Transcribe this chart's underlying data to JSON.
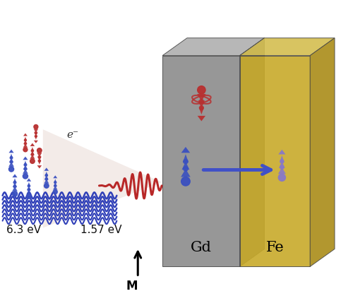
{
  "bg_color": "#ffffff",
  "gd_face_color": "#8c8c8c",
  "gd_top_color": "#b0b0b0",
  "gd_side_color": "#707070",
  "fe_face_color": "#c8aa2a",
  "fe_top_color": "#d4be50",
  "fe_side_color": "#aa8c18",
  "gd_label": "Gd",
  "fe_label": "Fe",
  "M_label": "M",
  "ev_label_1": "6.3 eV",
  "ev_label_2": "1.57 eV",
  "e_label": "e⁻",
  "blue": "#3a50c0",
  "red": "#b83030",
  "purple": "#8878c8",
  "arrow_blue": "#4050c8",
  "laser_red": "#b82828",
  "laser_blue": "#3040b8",
  "cone_color": "#e8d8d2"
}
